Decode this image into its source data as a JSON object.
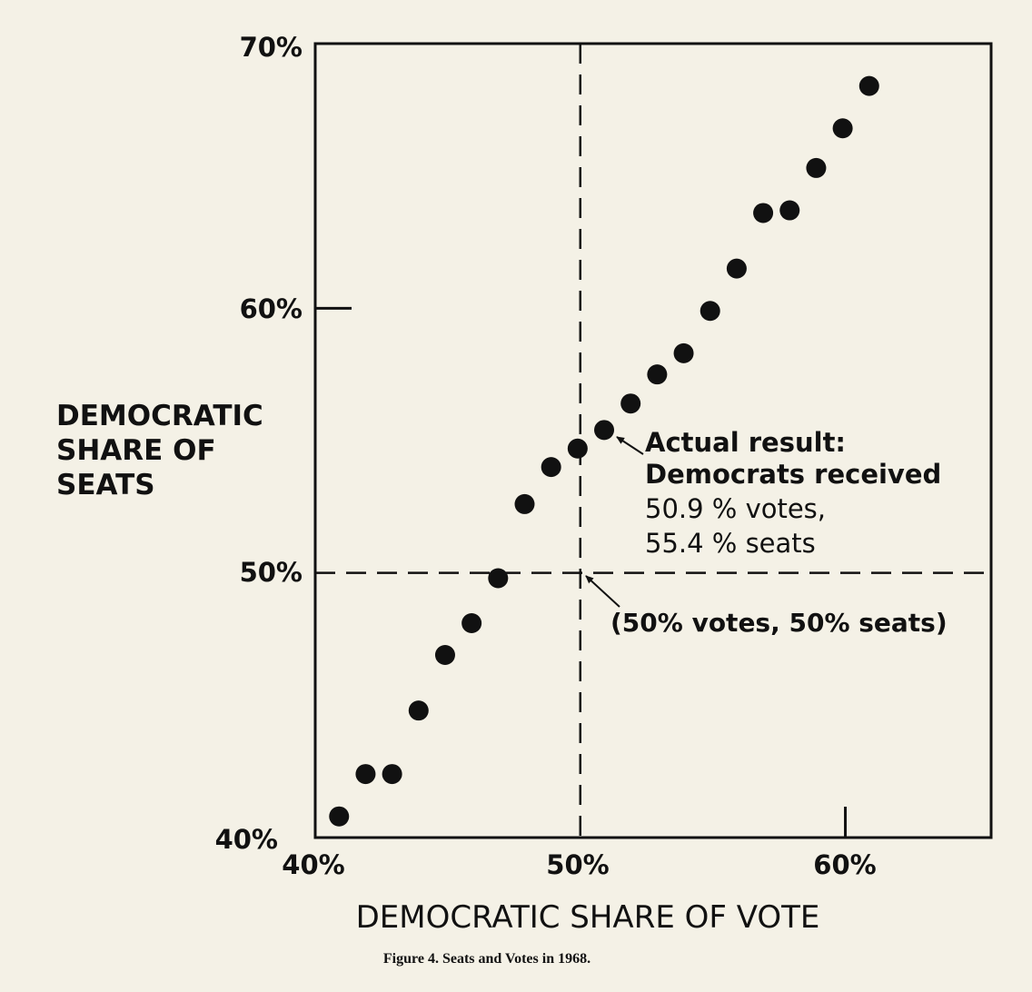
{
  "chart_data": {
    "type": "scatter",
    "caption": "Figure 4. Seats and Votes in 1968.",
    "xlabel": "DEMOCRATIC SHARE OF VOTE",
    "ylabel_lines": [
      "DEMOCRATIC",
      "SHARE OF",
      "SEATS"
    ],
    "xlim": [
      40,
      65.5
    ],
    "ylim": [
      40,
      70
    ],
    "x_ticks": [
      {
        "value": 40,
        "label": "40%"
      },
      {
        "value": 50,
        "label": "50%"
      },
      {
        "value": 60,
        "label": "60%"
      }
    ],
    "y_ticks": [
      {
        "value": 40,
        "label": "40%"
      },
      {
        "value": 50,
        "label": "50%"
      },
      {
        "value": 60,
        "label": "60%"
      },
      {
        "value": 70,
        "label": "70%"
      }
    ],
    "reference_lines": {
      "x": 50,
      "y": 50
    },
    "points": [
      {
        "x": 40.9,
        "y": 40.8
      },
      {
        "x": 41.9,
        "y": 42.4
      },
      {
        "x": 42.9,
        "y": 42.4
      },
      {
        "x": 43.9,
        "y": 44.8
      },
      {
        "x": 44.9,
        "y": 46.9
      },
      {
        "x": 45.9,
        "y": 48.1
      },
      {
        "x": 46.9,
        "y": 49.8
      },
      {
        "x": 47.9,
        "y": 52.6
      },
      {
        "x": 48.9,
        "y": 54.0
      },
      {
        "x": 49.9,
        "y": 54.7
      },
      {
        "x": 50.9,
        "y": 55.4
      },
      {
        "x": 51.9,
        "y": 56.4
      },
      {
        "x": 52.9,
        "y": 57.5
      },
      {
        "x": 53.9,
        "y": 58.3
      },
      {
        "x": 54.9,
        "y": 59.9
      },
      {
        "x": 55.9,
        "y": 61.5
      },
      {
        "x": 56.9,
        "y": 63.6
      },
      {
        "x": 57.9,
        "y": 63.7
      },
      {
        "x": 58.9,
        "y": 65.3
      },
      {
        "x": 59.9,
        "y": 66.8
      },
      {
        "x": 60.9,
        "y": 68.4
      }
    ],
    "annotations": [
      {
        "lines": [
          "Actual result:",
          "Democrats received",
          "50.9 %  votes,",
          "55.4 %  seats"
        ],
        "target": {
          "x": 50.9,
          "y": 55.4
        }
      },
      {
        "lines": [
          "(50% votes, 50% seats)"
        ],
        "target": {
          "x": 50,
          "y": 50
        }
      }
    ]
  }
}
